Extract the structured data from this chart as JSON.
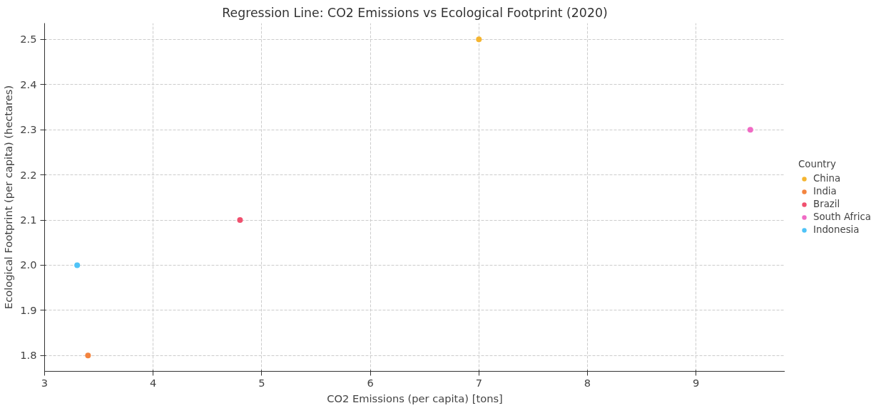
{
  "chart_data": {
    "type": "scatter",
    "title": "Regression Line: CO2 Emissions vs Ecological Footprint (2020)",
    "xlabel": "CO2 Emissions (per capita) [tons]",
    "ylabel": "Ecological Footprint (per capita) (hectares)",
    "legend_title": "Country",
    "series": [
      {
        "name": "China",
        "color": "#f5b530",
        "x": [
          7.0
        ],
        "values": [
          2.5
        ]
      },
      {
        "name": "India",
        "color": "#f3843f",
        "x": [
          3.4
        ],
        "values": [
          1.8
        ]
      },
      {
        "name": "Brazil",
        "color": "#f0506e",
        "x": [
          4.8
        ],
        "values": [
          2.1
        ]
      },
      {
        "name": "South Africa",
        "color": "#f06ac4",
        "x": [
          9.5
        ],
        "values": [
          2.3
        ]
      },
      {
        "name": "Indonesia",
        "color": "#4fc3f7",
        "x": [
          3.3
        ],
        "values": [
          2.0
        ]
      }
    ],
    "xlim": [
      3,
      9.82
    ],
    "ylim": [
      1.765,
      2.536
    ],
    "xticks": [
      3,
      4,
      5,
      6,
      7,
      8,
      9
    ],
    "yticks": [
      {
        "value": 1.8,
        "label": "1.8"
      },
      {
        "value": 1.9,
        "label": "1.9"
      },
      {
        "value": 2.0,
        "label": "2.0"
      },
      {
        "value": 2.1,
        "label": "2.1"
      },
      {
        "value": 2.2,
        "label": "2.2"
      },
      {
        "value": 2.3,
        "label": "2.3"
      },
      {
        "value": 2.4,
        "label": "2.4"
      },
      {
        "value": 2.5,
        "label": "2.5"
      }
    ],
    "grid": true,
    "legend": "right",
    "marker": "circle"
  }
}
